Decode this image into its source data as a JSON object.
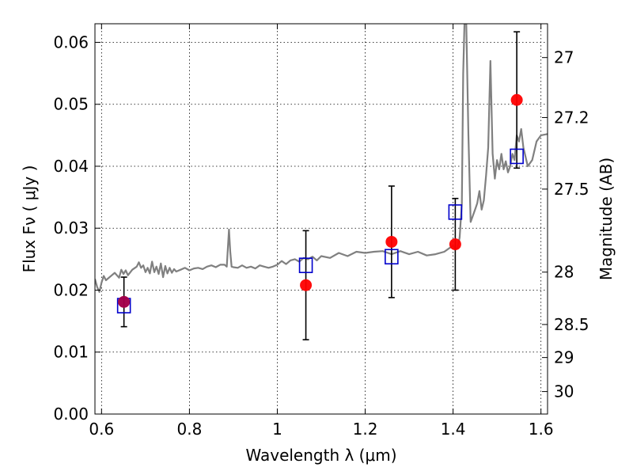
{
  "chart_data": {
    "type": "scatter",
    "xlabel": "Wavelength  λ (μm)",
    "ylabel": "Flux  Fν  ( μJy )",
    "y2label": "Magnitude (AB)",
    "xlim": [
      0.585,
      1.615
    ],
    "ylim": [
      0.0,
      0.063
    ],
    "grid": true,
    "x_ticks": [
      {
        "value": 0.6,
        "label": "0.6"
      },
      {
        "value": 0.8,
        "label": "0.8"
      },
      {
        "value": 1.0,
        "label": "1"
      },
      {
        "value": 1.2,
        "label": "1.2"
      },
      {
        "value": 1.4,
        "label": "1.4"
      },
      {
        "value": 1.6,
        "label": "1.6"
      }
    ],
    "y_ticks": [
      {
        "value": 0.0,
        "label": "0.00"
      },
      {
        "value": 0.01,
        "label": "0.01"
      },
      {
        "value": 0.02,
        "label": "0.02"
      },
      {
        "value": 0.03,
        "label": "0.03"
      },
      {
        "value": 0.04,
        "label": "0.04"
      },
      {
        "value": 0.05,
        "label": "0.05"
      },
      {
        "value": 0.06,
        "label": "0.06"
      }
    ],
    "y2_ticks": [
      {
        "value": 27.0,
        "label": "27"
      },
      {
        "value": 27.2,
        "label": "27.2"
      },
      {
        "value": 27.5,
        "label": "27.5"
      },
      {
        "value": 28.0,
        "label": "28"
      },
      {
        "value": 28.5,
        "label": "28.5"
      },
      {
        "value": 29.0,
        "label": "29"
      },
      {
        "value": 30.0,
        "label": "30"
      }
    ],
    "series": [
      {
        "kind": "line",
        "color": "#808080",
        "x": [
          0.585,
          0.59,
          0.595,
          0.6,
          0.605,
          0.61,
          0.62,
          0.63,
          0.64,
          0.645,
          0.65,
          0.655,
          0.66,
          0.67,
          0.68,
          0.685,
          0.69,
          0.695,
          0.7,
          0.705,
          0.71,
          0.715,
          0.72,
          0.725,
          0.73,
          0.735,
          0.74,
          0.745,
          0.75,
          0.755,
          0.76,
          0.765,
          0.77,
          0.78,
          0.79,
          0.8,
          0.81,
          0.82,
          0.83,
          0.84,
          0.85,
          0.86,
          0.87,
          0.88,
          0.885,
          0.89,
          0.893,
          0.896,
          0.9,
          0.91,
          0.92,
          0.93,
          0.94,
          0.95,
          0.96,
          0.97,
          0.98,
          0.99,
          1.0,
          1.01,
          1.02,
          1.03,
          1.04,
          1.05,
          1.06,
          1.07,
          1.08,
          1.09,
          1.1,
          1.12,
          1.14,
          1.16,
          1.18,
          1.2,
          1.22,
          1.24,
          1.26,
          1.28,
          1.3,
          1.32,
          1.34,
          1.36,
          1.38,
          1.4,
          1.405,
          1.41,
          1.415,
          1.42,
          1.423,
          1.426,
          1.43,
          1.435,
          1.44,
          1.445,
          1.45,
          1.455,
          1.46,
          1.465,
          1.47,
          1.475,
          1.48,
          1.485,
          1.49,
          1.495,
          1.5,
          1.505,
          1.51,
          1.515,
          1.52,
          1.525,
          1.53,
          1.535,
          1.54,
          1.545,
          1.55,
          1.555,
          1.56,
          1.57,
          1.58,
          1.59,
          1.6,
          1.615
        ],
        "y": [
          0.0218,
          0.0205,
          0.0197,
          0.0212,
          0.0223,
          0.0216,
          0.0222,
          0.0228,
          0.022,
          0.0233,
          0.0226,
          0.0232,
          0.0224,
          0.0233,
          0.0238,
          0.0245,
          0.0236,
          0.024,
          0.0229,
          0.0236,
          0.0227,
          0.0246,
          0.0229,
          0.0238,
          0.0226,
          0.0243,
          0.0221,
          0.0239,
          0.0227,
          0.0236,
          0.0228,
          0.0234,
          0.023,
          0.0233,
          0.0236,
          0.0232,
          0.0235,
          0.0236,
          0.0234,
          0.0238,
          0.024,
          0.0237,
          0.0241,
          0.0241,
          0.0238,
          0.0298,
          0.0262,
          0.0238,
          0.0237,
          0.0236,
          0.024,
          0.0236,
          0.0238,
          0.0235,
          0.024,
          0.0238,
          0.0236,
          0.0238,
          0.0241,
          0.0247,
          0.0242,
          0.0248,
          0.025,
          0.0246,
          0.0252,
          0.025,
          0.0254,
          0.0248,
          0.0255,
          0.0252,
          0.026,
          0.0255,
          0.0262,
          0.026,
          0.0262,
          0.0263,
          0.0258,
          0.0263,
          0.0258,
          0.0262,
          0.0256,
          0.0258,
          0.0262,
          0.0272,
          0.0266,
          0.0268,
          0.0285,
          0.034,
          0.055,
          0.063,
          0.063,
          0.045,
          0.031,
          0.032,
          0.033,
          0.034,
          0.036,
          0.033,
          0.0345,
          0.0385,
          0.043,
          0.057,
          0.042,
          0.038,
          0.041,
          0.0395,
          0.042,
          0.0395,
          0.0408,
          0.039,
          0.04,
          0.042,
          0.041,
          0.045,
          0.044,
          0.046,
          0.043,
          0.04,
          0.041,
          0.044,
          0.045,
          0.0452
        ]
      },
      {
        "kind": "points",
        "marker": "circle",
        "color": "#ff0000",
        "x": [
          0.651,
          1.065,
          1.26,
          1.405,
          1.545
        ],
        "y": [
          0.0181,
          0.0208,
          0.0278,
          0.0274,
          0.0507
        ],
        "yerr": [
          0.004,
          0.0088,
          0.009,
          0.0074,
          0.011
        ]
      },
      {
        "kind": "points",
        "marker": "square",
        "color": "#0000cc",
        "x": [
          0.651,
          1.065,
          1.26,
          1.405,
          1.545
        ],
        "y": [
          0.0175,
          0.024,
          0.0254,
          0.0326,
          0.0416
        ]
      }
    ]
  }
}
